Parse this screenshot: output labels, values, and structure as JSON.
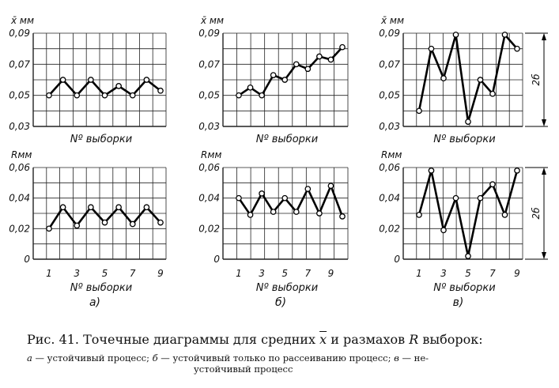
{
  "chart_data": [
    {
      "type": "line",
      "ylabel": "x̄ мм",
      "xlabel": "Nº выборки",
      "ylim": [
        0.03,
        0.09
      ],
      "yticks": [
        "0,03",
        "0,05",
        "0,07",
        "0,09"
      ],
      "x": [
        1,
        2,
        3,
        4,
        5,
        6,
        7,
        8,
        9
      ],
      "values": [
        0.05,
        0.06,
        0.05,
        0.06,
        0.05,
        0.056,
        0.05,
        0.06,
        0.053
      ]
    },
    {
      "type": "line",
      "ylabel": "x̄ мм",
      "xlabel": "Nº выборки",
      "ylim": [
        0.03,
        0.09
      ],
      "yticks": [
        "0,03",
        "0,05",
        "0,07",
        "0,09"
      ],
      "x": [
        1,
        2,
        3,
        4,
        5,
        6,
        7,
        8,
        9,
        10
      ],
      "values": [
        0.05,
        0.055,
        0.05,
        0.063,
        0.06,
        0.07,
        0.067,
        0.075,
        0.073,
        0.081
      ]
    },
    {
      "type": "line",
      "ylabel": "x̄ мм",
      "xlabel": "Nº выборки",
      "ylim": [
        0.03,
        0.09
      ],
      "yticks": [
        "0,03",
        "0,05",
        "0,07",
        "0,09"
      ],
      "x": [
        1,
        2,
        3,
        4,
        5,
        6,
        7,
        8,
        9
      ],
      "values": [
        0.04,
        0.08,
        0.061,
        0.089,
        0.033,
        0.06,
        0.051,
        0.089,
        0.08
      ],
      "annotation": "2б"
    },
    {
      "type": "line",
      "ylabel": "Rмм",
      "xlabel": "Nº выборки",
      "ylim": [
        0,
        0.06
      ],
      "yticks": [
        "0",
        "0,02",
        "0,04",
        "0,06"
      ],
      "xticks": [
        "1",
        "3",
        "5",
        "7",
        "9"
      ],
      "x": [
        1,
        2,
        3,
        4,
        5,
        6,
        7,
        8,
        9
      ],
      "values": [
        0.02,
        0.034,
        0.022,
        0.034,
        0.024,
        0.034,
        0.023,
        0.034,
        0.024
      ],
      "panel_label": "а)"
    },
    {
      "type": "line",
      "ylabel": "Rмм",
      "xlabel": "Nº выборки",
      "ylim": [
        0,
        0.06
      ],
      "yticks": [
        "0",
        "0,02",
        "0,04",
        "0,06"
      ],
      "xticks": [
        "1",
        "3",
        "5",
        "7",
        "9"
      ],
      "x": [
        1,
        2,
        3,
        4,
        5,
        6,
        7,
        8,
        9,
        10
      ],
      "values": [
        0.04,
        0.029,
        0.043,
        0.031,
        0.04,
        0.031,
        0.046,
        0.03,
        0.048,
        0.028
      ],
      "panel_label": "б)"
    },
    {
      "type": "line",
      "ylabel": "Rмм",
      "xlabel": "Nº выборки",
      "ylim": [
        0,
        0.06
      ],
      "yticks": [
        "0",
        "0,02",
        "0,04",
        "0,06"
      ],
      "xticks": [
        "1",
        "3",
        "5",
        "7",
        "9"
      ],
      "x": [
        1,
        2,
        3,
        4,
        5,
        6,
        7,
        8,
        9
      ],
      "values": [
        0.029,
        0.058,
        0.019,
        0.04,
        0.002,
        0.04,
        0.049,
        0.029,
        0.058
      ],
      "panel_label": "в)",
      "annotation": "2б"
    }
  ],
  "caption": {
    "prefix": "Рис.   41.  Точечные  диаграммы  для  средних",
    "xbar": "x",
    "middle": "и  размахов",
    "r": "R",
    "suffix": "выборок:",
    "line2_a": "а",
    "line2_a_text": "— устойчивый процесс;",
    "line2_b": "б",
    "line2_b_text": "— устойчивый  только  по  рассеиванию  процесс;",
    "line2_c": "в",
    "line2_c_text": "— не-",
    "line3": "устойчивый процесс"
  }
}
